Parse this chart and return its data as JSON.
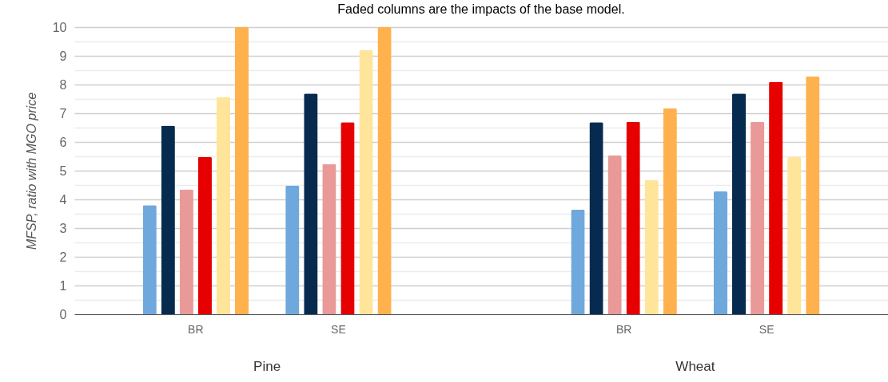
{
  "chart_data": {
    "type": "bar",
    "title": "Faded columns are the impacts of the base model.",
    "ylabel": "MFSP, ratio with MGO price",
    "categories": [
      "BR",
      "SE",
      null,
      "BR",
      "SE"
    ],
    "series": [
      {
        "color": "#6fa8dc",
        "values": [
          3.8,
          4.48,
          null,
          3.64,
          4.28
        ]
      },
      {
        "color": "#072b4f",
        "values": [
          6.57,
          7.69,
          null,
          6.69,
          7.69
        ]
      },
      {
        "color": "#ea9999",
        "values": [
          4.35,
          5.23,
          null,
          5.53,
          6.7
        ]
      },
      {
        "color": "#e60000",
        "values": [
          5.48,
          6.69,
          null,
          6.7,
          8.1
        ]
      },
      {
        "color": "#ffe599",
        "values": [
          7.56,
          9.21,
          null,
          4.67,
          5.47
        ]
      },
      {
        "color": "#ffb14e",
        "values": [
          10,
          10,
          null,
          7.17,
          8.28
        ]
      }
    ],
    "ylim": [
      0,
      10
    ],
    "yticks": [
      0,
      {
        "value": 0.5,
        "label": null
      },
      1,
      {
        "value": 1.5,
        "label": null
      },
      2,
      {
        "value": 2.5,
        "label": null
      },
      3,
      {
        "value": 3.5,
        "label": null
      },
      4,
      {
        "value": 4.5,
        "label": null
      },
      5,
      {
        "value": 5.5,
        "label": null
      },
      6,
      {
        "value": 6.5,
        "label": null
      },
      7,
      {
        "value": 7.5,
        "label": null
      },
      8,
      {
        "value": 8.5,
        "label": null
      },
      9,
      {
        "value": 9.5,
        "label": null
      },
      10
    ],
    "grid": "y",
    "legend": false,
    "annotations": [
      "Pine",
      "Wheat"
    ]
  }
}
